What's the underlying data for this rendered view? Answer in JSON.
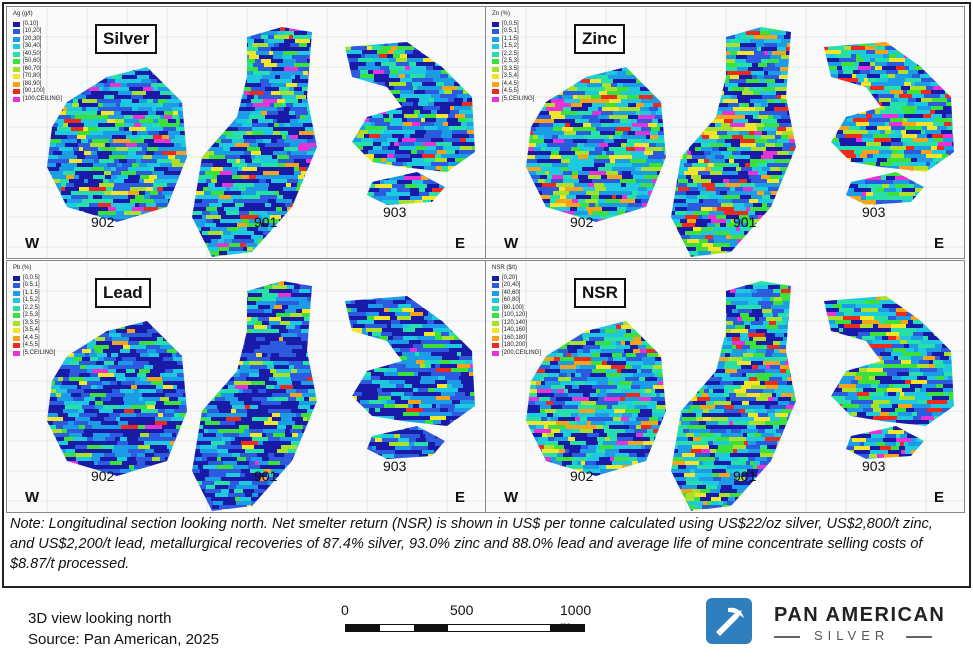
{
  "panels": [
    {
      "title": "Silver",
      "legend_title": "Ag (g/t)",
      "legend": [
        "[0,10]",
        "[10,20]",
        "[20,30]",
        "[30,40]",
        "[40,50]",
        "[50,60]",
        "[60,70]",
        "[70,80]",
        "[80,90]",
        "[90,100]",
        "[100,CEILING]"
      ],
      "zones": [
        "902",
        "901",
        "903"
      ],
      "west": "W",
      "east": "E"
    },
    {
      "title": "Zinc",
      "legend_title": "Zn (%)",
      "legend": [
        "[0,0.5]",
        "[0.5,1]",
        "[1,1.5]",
        "[1.5,2]",
        "[2,2.5]",
        "[2.5,3]",
        "[3,3.5]",
        "[3.5,4]",
        "[4,4.5]",
        "[4.5,5]",
        "[5,CEILING]"
      ],
      "zones": [
        "902",
        "901",
        "903"
      ],
      "west": "W",
      "east": "E"
    },
    {
      "title": "Lead",
      "legend_title": "Pb (%)",
      "legend": [
        "[0,0.5]",
        "[0.5,1]",
        "[1,1.5]",
        "[1.5,2]",
        "[2,2.5]",
        "[2.5,3]",
        "[3,3.5]",
        "[3.5,4]",
        "[4,4.5]",
        "[4.5,5]",
        "[5,CEILING]"
      ],
      "zones": [
        "902",
        "901",
        "903"
      ],
      "west": "W",
      "east": "E"
    },
    {
      "title": "NSR",
      "legend_title": "NSR ($/t)",
      "legend": [
        "[0,20]",
        "[20,40]",
        "[40,60]",
        "[60,80]",
        "[80,100]",
        "[100,120]",
        "[120,140]",
        "[140,160]",
        "[160,180]",
        "[180,200]",
        "[200,CEILING]"
      ],
      "zones": [
        "902",
        "901",
        "903"
      ],
      "west": "W",
      "east": "E"
    }
  ],
  "legend_colors": [
    "#1a1aa8",
    "#2d5be0",
    "#1c9be6",
    "#1ec9e0",
    "#27e0a8",
    "#3be03b",
    "#a8e02a",
    "#f2e427",
    "#f7a21b",
    "#ee2a1f",
    "#e632d6"
  ],
  "note": "Note: Longitudinal section looking north. Net smelter return (NSR) is shown in US$ per tonne calculated using US$22/oz silver, US$2,800/t zinc, and US$2,200/t lead, metallurgical recoveries of 87.4% silver, 93.0% zinc and 88.0% lead and average life of mine concentrate selling costs of $8.87/t processed.",
  "view_label": "3D view looking north",
  "source_label": "Source: Pan American, 2025",
  "scale": {
    "labels": [
      "0",
      "500",
      "1000 m"
    ]
  },
  "logo": {
    "name": "PAN AMERICAN",
    "sub": "SILVER"
  }
}
